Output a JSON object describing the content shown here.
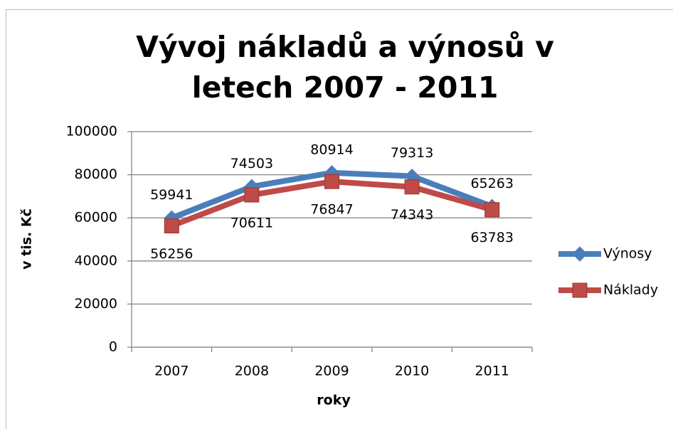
{
  "chart_data": {
    "type": "line",
    "title": "Vývoj nákladů a výnosů v letech 2007 - 2011",
    "x_label": "roky",
    "y_label": "v tis. Kč",
    "categories": [
      "2007",
      "2008",
      "2009",
      "2010",
      "2011"
    ],
    "series": [
      {
        "name": "Výnosy",
        "color": "#4a7ebb",
        "marker": "diamond",
        "values": [
          59941,
          74503,
          80914,
          79313,
          65263
        ]
      },
      {
        "name": "Náklady",
        "color": "#be4b48",
        "marker": "square",
        "values": [
          56256,
          70611,
          76847,
          74343,
          63783
        ]
      }
    ],
    "ylim": [
      0,
      100000
    ],
    "yticks": [
      0,
      20000,
      40000,
      60000,
      80000,
      100000
    ],
    "grid": true,
    "legend": "right"
  }
}
